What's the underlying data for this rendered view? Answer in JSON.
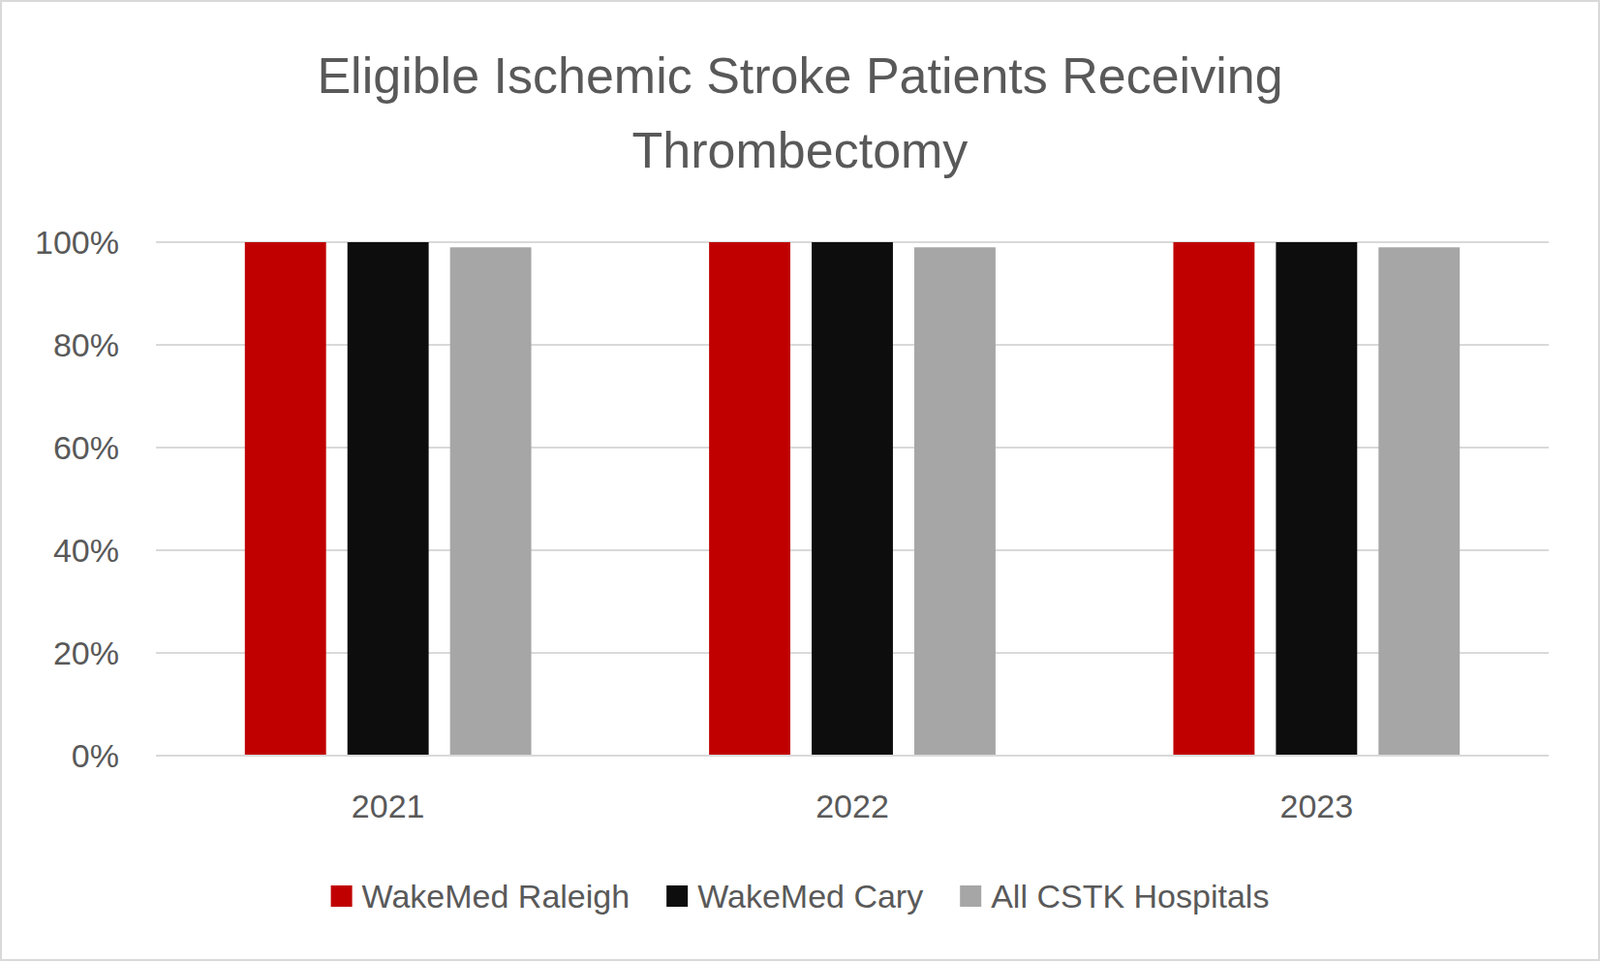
{
  "chart_data": {
    "type": "bar",
    "title": "Eligible Ischemic Stroke Patients Receiving Thrombectomy",
    "categories": [
      "2021",
      "2022",
      "2023"
    ],
    "series": [
      {
        "name": "WakeMed Raleigh",
        "color": "#c00000",
        "values": [
          100,
          100,
          100
        ]
      },
      {
        "name": "WakeMed Cary",
        "color": "#0d0d0d",
        "values": [
          100,
          100,
          100
        ]
      },
      {
        "name": "All CSTK Hospitals",
        "color": "#a6a6a6",
        "values": [
          99,
          99,
          99
        ]
      }
    ],
    "ylim": [
      0,
      100
    ],
    "yticks": [
      {
        "value": 0,
        "label": "0%"
      },
      {
        "value": 20,
        "label": "20%"
      },
      {
        "value": 40,
        "label": "40%"
      },
      {
        "value": 60,
        "label": "60%"
      },
      {
        "value": 80,
        "label": "80%"
      },
      {
        "value": 100,
        "label": "100%"
      }
    ],
    "grid": true,
    "legend": "bottom"
  }
}
